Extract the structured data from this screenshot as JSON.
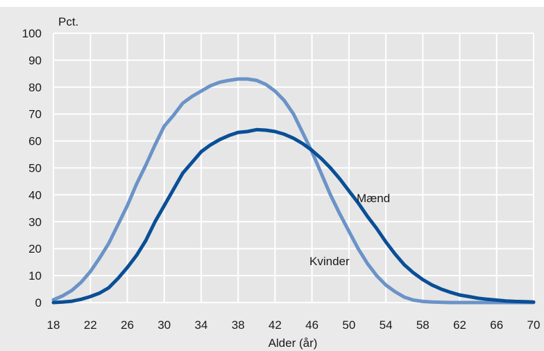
{
  "chart_data": {
    "type": "line",
    "title": "",
    "xlabel": "Alder (år)",
    "ylabel": "Pct.",
    "xlim": [
      18,
      70
    ],
    "ylim": [
      0,
      100
    ],
    "x_ticks": [
      "18",
      "22",
      "26",
      "30",
      "34",
      "38",
      "42",
      "46",
      "50",
      "54",
      "58",
      "62",
      "66",
      "70"
    ],
    "y_ticks": [
      "0",
      "10",
      "20",
      "30",
      "40",
      "50",
      "60",
      "70",
      "80",
      "90",
      "100"
    ],
    "grid": true,
    "colors": {
      "background": "#e6e6e6",
      "grid": "#ffffff",
      "frame": "#eaeaea"
    },
    "series": [
      {
        "name": "Mænd",
        "color": "#0a4f96",
        "x": [
          18,
          19,
          20,
          21,
          22,
          23,
          24,
          25,
          26,
          27,
          28,
          29,
          30,
          31,
          32,
          33,
          34,
          35,
          36,
          37,
          38,
          39,
          40,
          41,
          42,
          43,
          44,
          45,
          46,
          47,
          48,
          49,
          50,
          51,
          52,
          53,
          54,
          55,
          56,
          57,
          58,
          59,
          60,
          61,
          62,
          63,
          64,
          65,
          66,
          67,
          68,
          69,
          70
        ],
        "values": [
          0,
          0.2,
          0.5,
          1.2,
          2.2,
          3.5,
          5.5,
          9,
          13,
          17.5,
          23,
          30,
          36,
          42,
          48,
          52,
          56,
          58.5,
          60.5,
          62,
          63.2,
          63.5,
          64.2,
          64,
          63.5,
          62.5,
          61,
          59,
          56.5,
          53.5,
          50,
          46,
          41.5,
          37,
          32,
          27.5,
          22.5,
          18,
          14,
          11,
          8.5,
          6.5,
          5,
          3.8,
          2.8,
          2.2,
          1.6,
          1.2,
          0.9,
          0.6,
          0.4,
          0.3,
          0.2
        ]
      },
      {
        "name": "Kvinder",
        "color": "#6b93c7",
        "x": [
          18,
          19,
          20,
          21,
          22,
          23,
          24,
          25,
          26,
          27,
          28,
          29,
          30,
          31,
          32,
          33,
          34,
          35,
          36,
          37,
          38,
          39,
          40,
          41,
          42,
          43,
          44,
          45,
          46,
          47,
          48,
          49,
          50,
          51,
          52,
          53,
          54,
          55,
          56,
          57,
          58,
          59,
          60,
          61,
          62,
          63,
          64,
          65,
          66,
          67,
          68,
          69,
          70
        ],
        "values": [
          1,
          2.5,
          4.5,
          7.5,
          11.5,
          16.5,
          22,
          29,
          36,
          44,
          51,
          58.5,
          65.5,
          69.5,
          74,
          76.5,
          78.5,
          80.5,
          81.8,
          82.5,
          83,
          83,
          82.5,
          81,
          78.5,
          75,
          70,
          63,
          56,
          48,
          40,
          33,
          26.5,
          20,
          14.5,
          10,
          6.5,
          4,
          2,
          0.9,
          0.4,
          0.2,
          0.1,
          0,
          0,
          0,
          0,
          0,
          0,
          0,
          0,
          0,
          0
        ]
      }
    ]
  }
}
